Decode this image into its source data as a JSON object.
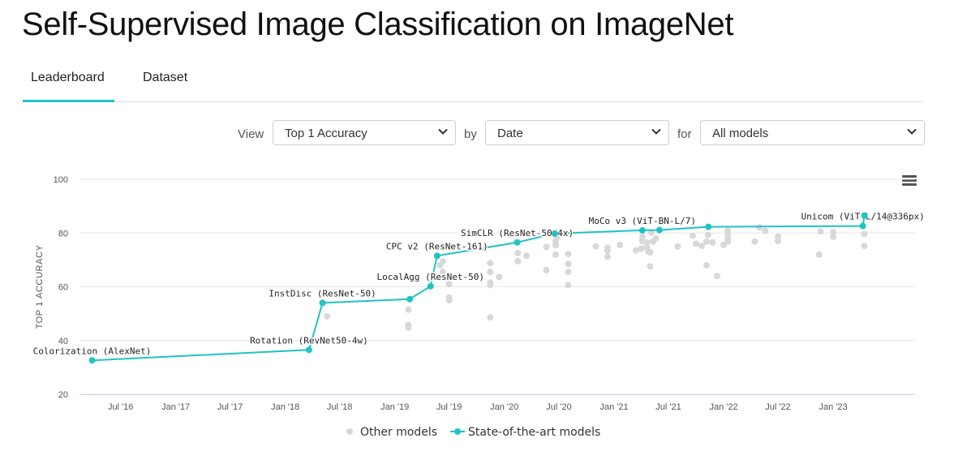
{
  "page": {
    "title": "Self-Supervised Image Classification on ImageNet"
  },
  "tabs": [
    {
      "label": "Leaderboard"
    },
    {
      "label": "Dataset"
    }
  ],
  "controls": {
    "view_label": "View",
    "view_value": "Top 1 Accuracy",
    "by_label": "by",
    "by_value": "Date",
    "for_label": "for",
    "for_value": "All models"
  },
  "colors": {
    "accent": "#21c3c3",
    "other_points": "#d8d8d8"
  },
  "chart_data": {
    "type": "scatter",
    "ylabel": "TOP 1 ACCURACY",
    "xlabel": "",
    "ylim": [
      20,
      100
    ],
    "yticks": [
      20,
      40,
      60,
      80,
      100
    ],
    "xlim": [
      "2016-02-15",
      "2023-10-01"
    ],
    "xticks": [
      {
        "date": "2016-07-01",
        "label": "Jul '16"
      },
      {
        "date": "2017-01-01",
        "label": "Jan '17"
      },
      {
        "date": "2017-07-01",
        "label": "Jul '17"
      },
      {
        "date": "2018-01-01",
        "label": "Jan '18"
      },
      {
        "date": "2018-07-01",
        "label": "Jul '18"
      },
      {
        "date": "2019-01-01",
        "label": "Jan '19"
      },
      {
        "date": "2019-07-01",
        "label": "Jul '19"
      },
      {
        "date": "2020-01-01",
        "label": "Jan '20"
      },
      {
        "date": "2020-07-01",
        "label": "Jul '20"
      },
      {
        "date": "2021-01-01",
        "label": "Jan '21"
      },
      {
        "date": "2021-07-01",
        "label": "Jul '21"
      },
      {
        "date": "2022-01-01",
        "label": "Jan '22"
      },
      {
        "date": "2022-07-01",
        "label": "Jul '22"
      },
      {
        "date": "2023-01-01",
        "label": "Jan '23"
      }
    ],
    "grid": true,
    "legend_position": "bottom-center",
    "series": [
      {
        "name": "State-of-the-art models",
        "type": "line",
        "points": [
          {
            "x": "2016-03-28",
            "y": 32.6,
            "label": "Colorization (AlexNet)"
          },
          {
            "x": "2018-03-21",
            "y": 36.5,
            "label": "Rotation (RevNet50-4w)"
          },
          {
            "x": "2018-05-05",
            "y": 54.0,
            "label": "InstDisc (ResNet-50)"
          },
          {
            "x": "2019-02-20",
            "y": 55.4,
            "label": ""
          },
          {
            "x": "2019-04-30",
            "y": 60.2,
            "label": "LocalAgg (ResNet-50)"
          },
          {
            "x": "2019-05-22",
            "y": 71.5,
            "label": "CPC v2 (ResNet-161)"
          },
          {
            "x": "2020-02-13",
            "y": 76.5,
            "label": "SimCLR (ResNet-50 4x)"
          },
          {
            "x": "2020-06-17",
            "y": 79.8,
            "label": ""
          },
          {
            "x": "2021-04-05",
            "y": 81.0,
            "label": "MoCo v3 (ViT-BN-L/7)"
          },
          {
            "x": "2021-06-01",
            "y": 81.1,
            "label": ""
          },
          {
            "x": "2021-11-11",
            "y": 82.3,
            "label": ""
          },
          {
            "x": "2023-04-10",
            "y": 82.6,
            "label": "Unicom (ViT-L/14@336px)"
          },
          {
            "x": "2023-04-15",
            "y": 86.5,
            "label": ""
          }
        ]
      },
      {
        "name": "Other models",
        "type": "scatter",
        "points": [
          {
            "x": "2018-05-20",
            "y": 49.0
          },
          {
            "x": "2019-02-15",
            "y": 51.5
          },
          {
            "x": "2019-02-15",
            "y": 45.8
          },
          {
            "x": "2019-02-15",
            "y": 44.8
          },
          {
            "x": "2019-06-01",
            "y": 68.0
          },
          {
            "x": "2019-06-10",
            "y": 69.5
          },
          {
            "x": "2019-06-10",
            "y": 65.5
          },
          {
            "x": "2019-06-20",
            "y": 63.2
          },
          {
            "x": "2019-07-01",
            "y": 61.0
          },
          {
            "x": "2019-07-01",
            "y": 56.0
          },
          {
            "x": "2019-07-01",
            "y": 55.0
          },
          {
            "x": "2019-11-15",
            "y": 68.8
          },
          {
            "x": "2019-11-15",
            "y": 65.5
          },
          {
            "x": "2019-11-15",
            "y": 61.6
          },
          {
            "x": "2019-11-15",
            "y": 60.6
          },
          {
            "x": "2019-12-15",
            "y": 63.6
          },
          {
            "x": "2019-11-15",
            "y": 48.6
          },
          {
            "x": "2020-02-15",
            "y": 69.5
          },
          {
            "x": "2020-02-15",
            "y": 72.5
          },
          {
            "x": "2020-03-15",
            "y": 71.5
          },
          {
            "x": "2020-05-20",
            "y": 66.2
          },
          {
            "x": "2020-05-20",
            "y": 74.8
          },
          {
            "x": "2020-06-20",
            "y": 75.5
          },
          {
            "x": "2020-06-20",
            "y": 77.0
          },
          {
            "x": "2020-06-20",
            "y": 72.0
          },
          {
            "x": "2020-06-25",
            "y": 78.5
          },
          {
            "x": "2020-08-01",
            "y": 72.2
          },
          {
            "x": "2020-08-01",
            "y": 68.5
          },
          {
            "x": "2020-08-01",
            "y": 65.5
          },
          {
            "x": "2020-08-01",
            "y": 60.6
          },
          {
            "x": "2020-11-01",
            "y": 75.0
          },
          {
            "x": "2020-12-10",
            "y": 74.5
          },
          {
            "x": "2020-12-10",
            "y": 73.5
          },
          {
            "x": "2020-12-10",
            "y": 71.2
          },
          {
            "x": "2021-01-20",
            "y": 75.6
          },
          {
            "x": "2021-03-15",
            "y": 73.5
          },
          {
            "x": "2021-04-01",
            "y": 74.2
          },
          {
            "x": "2021-04-05",
            "y": 77.0
          },
          {
            "x": "2021-04-05",
            "y": 78.6
          },
          {
            "x": "2021-04-20",
            "y": 76.5
          },
          {
            "x": "2021-04-20",
            "y": 74.8
          },
          {
            "x": "2021-04-25",
            "y": 73.2
          },
          {
            "x": "2021-05-01",
            "y": 72.8
          },
          {
            "x": "2021-05-01",
            "y": 67.6
          },
          {
            "x": "2021-05-05",
            "y": 80.2
          },
          {
            "x": "2021-05-10",
            "y": 76.8
          },
          {
            "x": "2021-05-20",
            "y": 78.0
          },
          {
            "x": "2021-08-01",
            "y": 75.0
          },
          {
            "x": "2021-09-20",
            "y": 79.0
          },
          {
            "x": "2021-10-01",
            "y": 76.0
          },
          {
            "x": "2021-10-20",
            "y": 75.2
          },
          {
            "x": "2021-11-05",
            "y": 76.8
          },
          {
            "x": "2021-11-05",
            "y": 68.0
          },
          {
            "x": "2021-11-10",
            "y": 79.3
          },
          {
            "x": "2021-11-25",
            "y": 76.5
          },
          {
            "x": "2021-12-10",
            "y": 64.0
          },
          {
            "x": "2022-01-01",
            "y": 75.6
          },
          {
            "x": "2022-01-15",
            "y": 80.9
          },
          {
            "x": "2022-01-15",
            "y": 79.3
          },
          {
            "x": "2022-01-15",
            "y": 77.8
          },
          {
            "x": "2022-01-15",
            "y": 76.8
          },
          {
            "x": "2022-04-15",
            "y": 76.8
          },
          {
            "x": "2022-05-01",
            "y": 82.1
          },
          {
            "x": "2022-05-20",
            "y": 80.8
          },
          {
            "x": "2022-07-01",
            "y": 78.6
          },
          {
            "x": "2022-07-01",
            "y": 77.0
          },
          {
            "x": "2022-11-15",
            "y": 72.0
          },
          {
            "x": "2022-11-20",
            "y": 80.6
          },
          {
            "x": "2023-01-01",
            "y": 80.3
          },
          {
            "x": "2023-01-01",
            "y": 78.6
          },
          {
            "x": "2023-04-15",
            "y": 79.6
          },
          {
            "x": "2023-04-15",
            "y": 75.2
          }
        ]
      }
    ]
  }
}
